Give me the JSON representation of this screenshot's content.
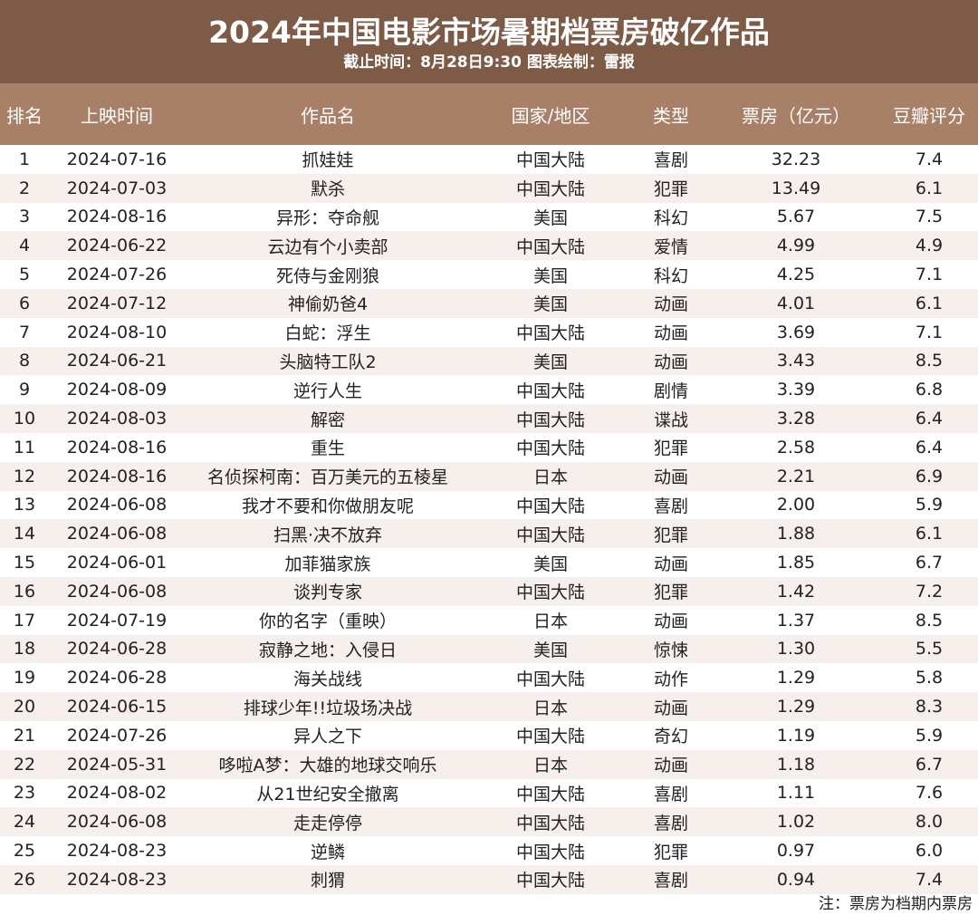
{
  "header": {
    "title": "2024年中国电影市场暑期档票房破亿作品",
    "subtitle": "截止时间：8月28日9:30  图表绘制：雷报"
  },
  "table": {
    "columns": [
      "排名",
      "上映时间",
      "作品名",
      "国家/地区",
      "类型",
      "票房（亿元）",
      "豆瓣评分"
    ],
    "rows": [
      [
        "1",
        "2024-07-16",
        "抓娃娃",
        "中国大陆",
        "喜剧",
        "32.23",
        "7.4"
      ],
      [
        "2",
        "2024-07-03",
        "默杀",
        "中国大陆",
        "犯罪",
        "13.49",
        "6.1"
      ],
      [
        "3",
        "2024-08-16",
        "异形：夺命舰",
        "美国",
        "科幻",
        "5.67",
        "7.5"
      ],
      [
        "4",
        "2024-06-22",
        "云边有个小卖部",
        "中国大陆",
        "爱情",
        "4.99",
        "4.9"
      ],
      [
        "5",
        "2024-07-26",
        "死侍与金刚狼",
        "美国",
        "科幻",
        "4.25",
        "7.1"
      ],
      [
        "6",
        "2024-07-12",
        "神偷奶爸4",
        "美国",
        "动画",
        "4.01",
        "6.1"
      ],
      [
        "7",
        "2024-08-10",
        "白蛇：浮生",
        "中国大陆",
        "动画",
        "3.69",
        "7.1"
      ],
      [
        "8",
        "2024-06-21",
        "头脑特工队2",
        "美国",
        "动画",
        "3.43",
        "8.5"
      ],
      [
        "9",
        "2024-08-09",
        "逆行人生",
        "中国大陆",
        "剧情",
        "3.39",
        "6.8"
      ],
      [
        "10",
        "2024-08-03",
        "解密",
        "中国大陆",
        "谍战",
        "3.28",
        "6.4"
      ],
      [
        "11",
        "2024-08-16",
        "重生",
        "中国大陆",
        "犯罪",
        "2.58",
        "6.4"
      ],
      [
        "12",
        "2024-08-16",
        "名侦探柯南：百万美元的五棱星",
        "日本",
        "动画",
        "2.21",
        "6.9"
      ],
      [
        "13",
        "2024-06-08",
        "我才不要和你做朋友呢",
        "中国大陆",
        "喜剧",
        "2.00",
        "5.9"
      ],
      [
        "14",
        "2024-06-08",
        "扫黑·决不放弃",
        "中国大陆",
        "犯罪",
        "1.88",
        "6.1"
      ],
      [
        "15",
        "2024-06-01",
        "加菲猫家族",
        "美国",
        "动画",
        "1.85",
        "6.7"
      ],
      [
        "16",
        "2024-06-08",
        "谈判专家",
        "中国大陆",
        "犯罪",
        "1.42",
        "7.2"
      ],
      [
        "17",
        "2024-07-19",
        "你的名字（重映）",
        "日本",
        "动画",
        "1.37",
        "8.5"
      ],
      [
        "18",
        "2024-06-28",
        "寂静之地：入侵日",
        "美国",
        "惊悚",
        "1.30",
        "5.5"
      ],
      [
        "19",
        "2024-06-28",
        "海关战线",
        "中国大陆",
        "动作",
        "1.29",
        "5.8"
      ],
      [
        "20",
        "2024-06-15",
        "排球少年!!垃圾场决战",
        "日本",
        "动画",
        "1.29",
        "8.3"
      ],
      [
        "21",
        "2024-07-26",
        "异人之下",
        "中国大陆",
        "奇幻",
        "1.19",
        "5.9"
      ],
      [
        "22",
        "2024-05-31",
        "哆啦A梦：大雄的地球交响乐",
        "日本",
        "动画",
        "1.18",
        "6.7"
      ],
      [
        "23",
        "2024-08-02",
        "从21世纪安全撤离",
        "中国大陆",
        "喜剧",
        "1.11",
        "7.6"
      ],
      [
        "24",
        "2024-06-08",
        "走走停停",
        "中国大陆",
        "喜剧",
        "1.02",
        "8.0"
      ],
      [
        "25",
        "2024-08-23",
        "逆鳞",
        "中国大陆",
        "犯罪",
        "0.97",
        "6.0"
      ],
      [
        "26",
        "2024-08-23",
        "刺猬",
        "中国大陆",
        "喜剧",
        "0.94",
        "7.4"
      ]
    ]
  },
  "note": "注：票房为档期内票房"
}
